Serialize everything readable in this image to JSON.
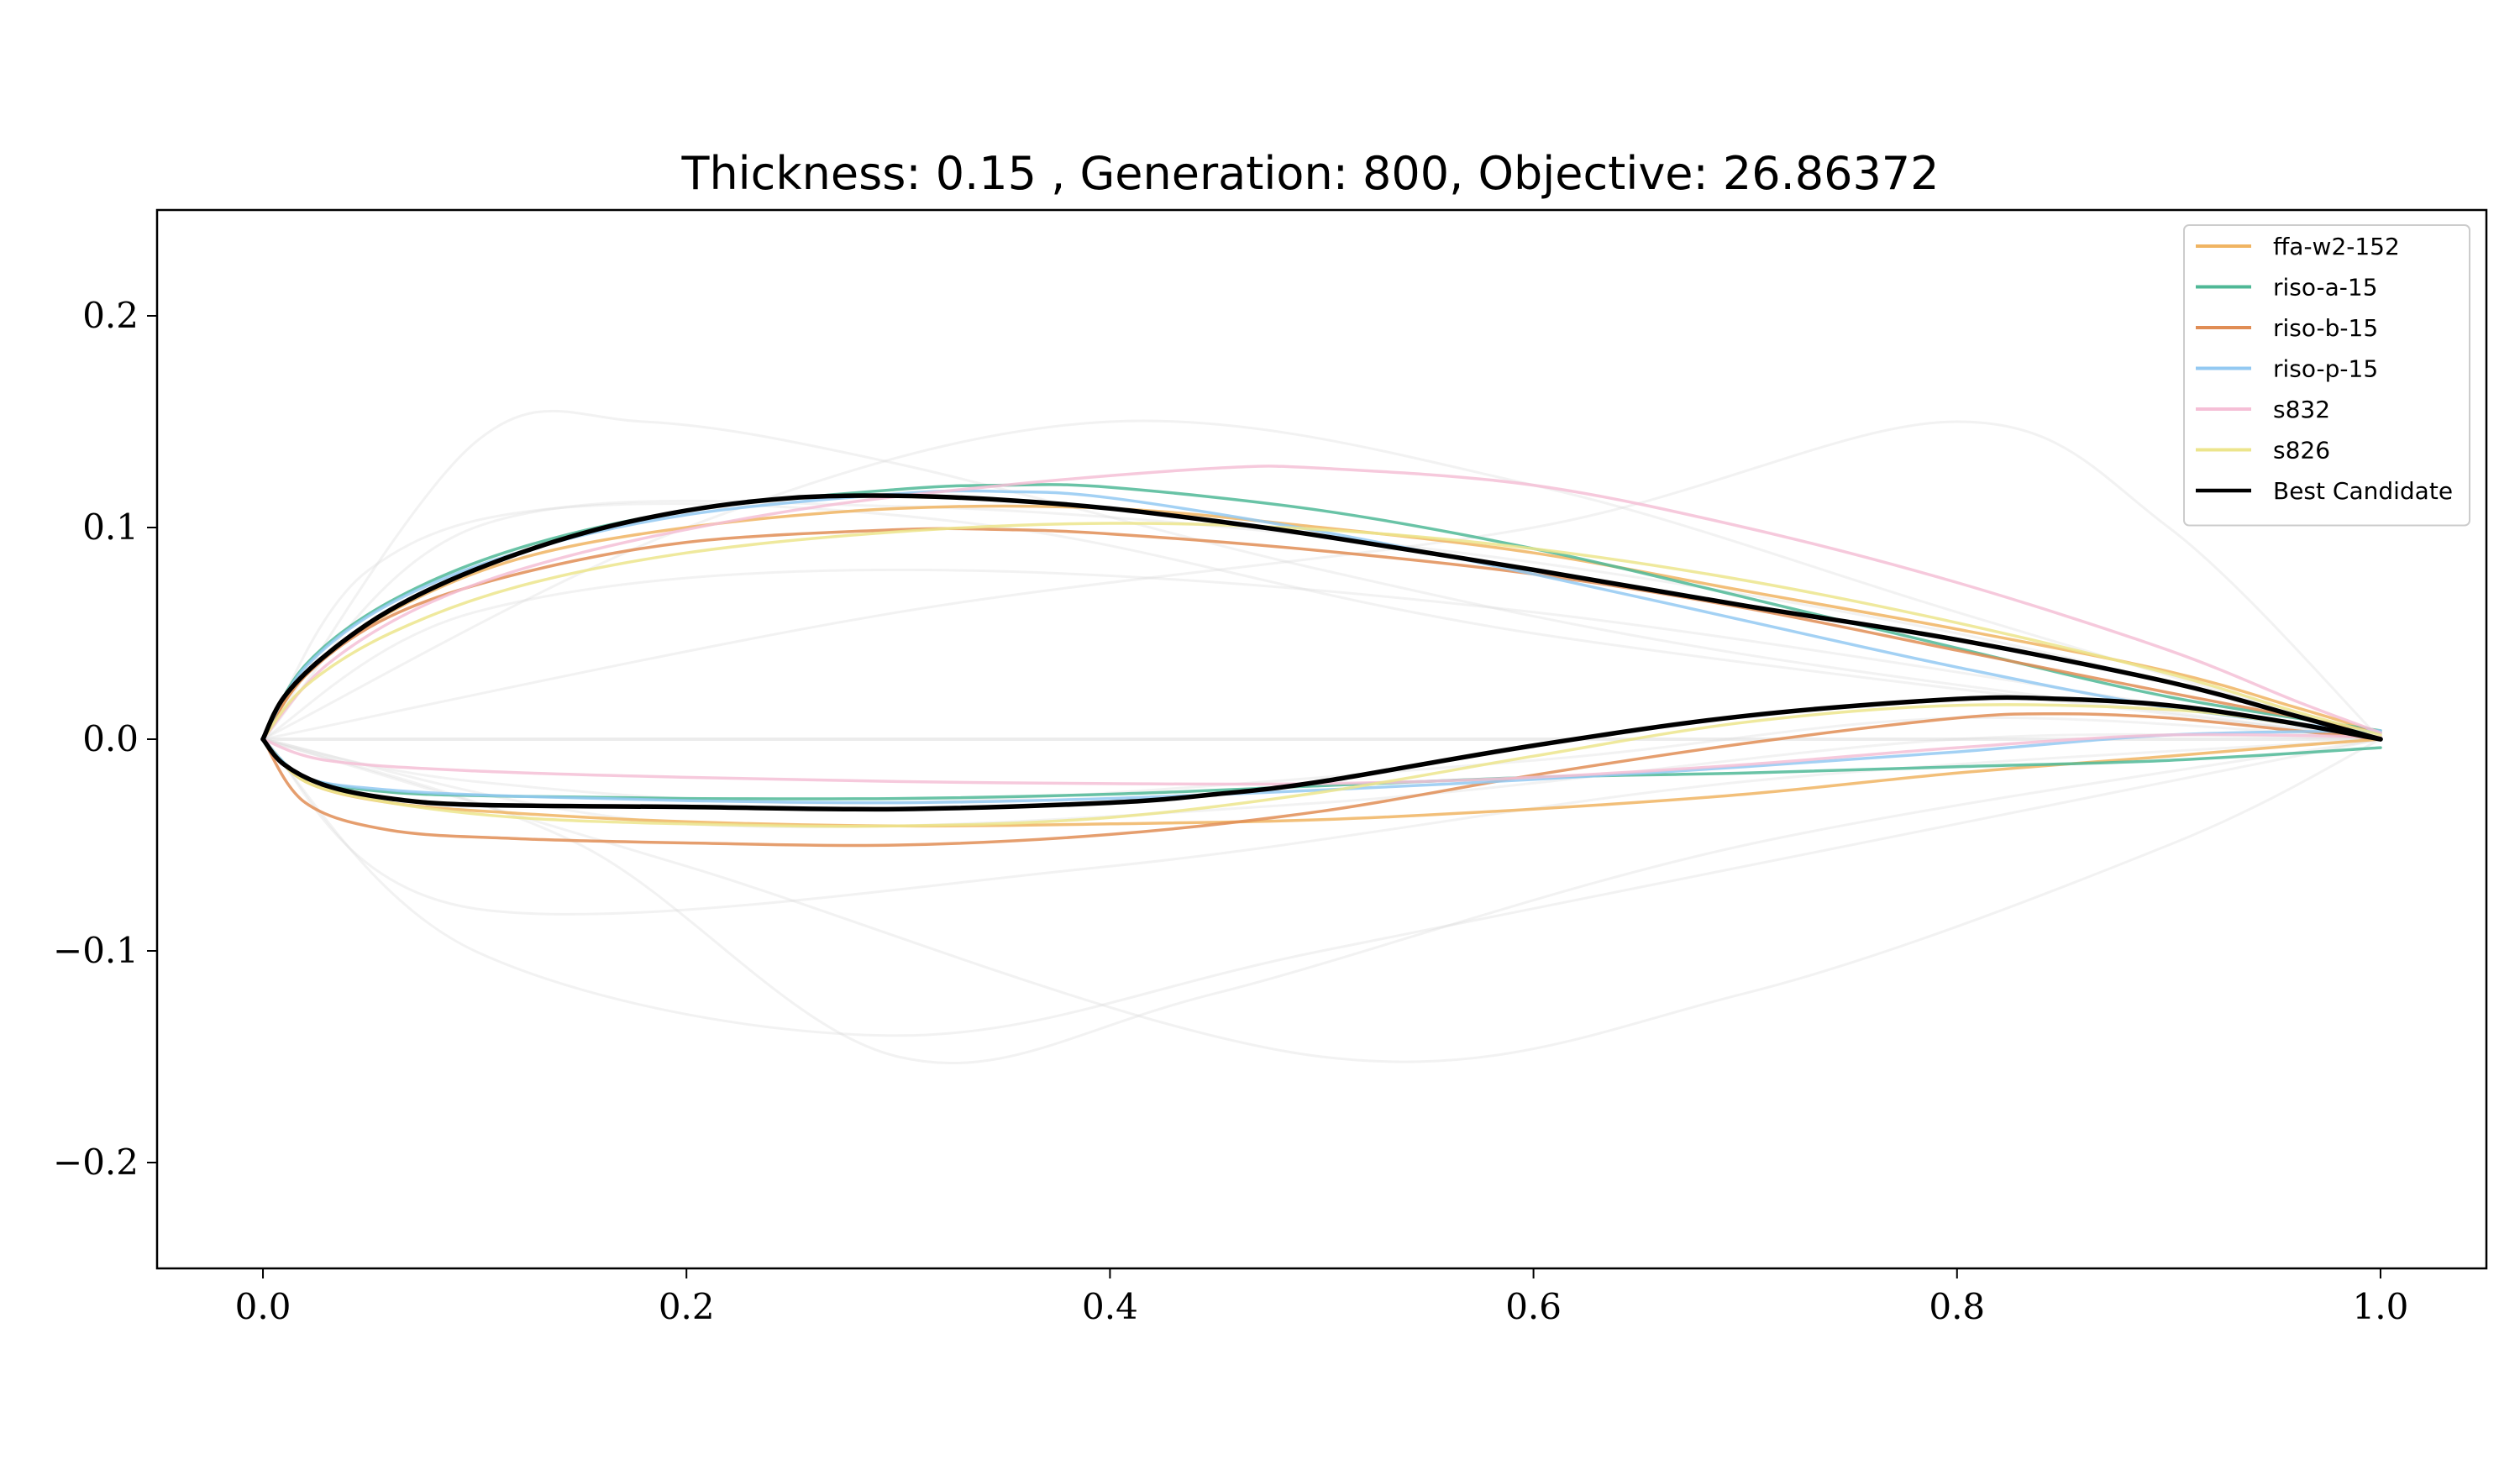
{
  "chart_data": {
    "type": "line",
    "title": "Thickness: 0.15 , Generation: 800, Objective: 26.86372",
    "xlabel": "",
    "ylabel": "",
    "xlim": [
      -0.05,
      1.05
    ],
    "ylim": [
      -0.25,
      0.25
    ],
    "x_ticks": [
      0.0,
      0.2,
      0.4,
      0.6,
      0.8,
      1.0
    ],
    "x_tick_labels": [
      "0.0",
      "0.2",
      "0.4",
      "0.6",
      "0.8",
      "1.0"
    ],
    "y_ticks": [
      0.2,
      0.1,
      0.0,
      -0.1,
      -0.2
    ],
    "y_tick_labels": [
      "0.2",
      "0.1",
      "0.0",
      "−0.1",
      "−0.2"
    ],
    "grid": false,
    "legend_position": "top-right",
    "background_population": {
      "color": "#d9d9d9",
      "curves": [
        {
          "upper": [
            [
              0,
              0
            ],
            [
              0.1,
              0.14
            ],
            [
              0.18,
              0.15
            ],
            [
              0.3,
              0.13
            ],
            [
              0.5,
              0.08
            ],
            [
              0.7,
              0.04
            ],
            [
              1,
              0
            ]
          ],
          "lower": [
            [
              0,
              0
            ],
            [
              0.1,
              -0.1
            ],
            [
              0.3,
              -0.14
            ],
            [
              0.5,
              -0.1
            ],
            [
              0.8,
              -0.04
            ],
            [
              1,
              0
            ]
          ]
        },
        {
          "upper": [
            [
              0,
              0
            ],
            [
              0.2,
              0.1
            ],
            [
              0.4,
              0.15
            ],
            [
              0.6,
              0.12
            ],
            [
              0.8,
              0.06
            ],
            [
              1,
              0
            ]
          ],
          "lower": [
            [
              0,
              0
            ],
            [
              0.15,
              -0.05
            ],
            [
              0.3,
              -0.15
            ],
            [
              0.45,
              -0.12
            ],
            [
              0.7,
              -0.05
            ],
            [
              1,
              0
            ]
          ]
        },
        {
          "upper": [
            [
              0,
              0
            ],
            [
              0.3,
              0.06
            ],
            [
              0.6,
              0.1
            ],
            [
              0.8,
              0.15
            ],
            [
              0.9,
              0.1
            ],
            [
              1,
              0
            ]
          ],
          "lower": [
            [
              0,
              0
            ],
            [
              0.2,
              -0.06
            ],
            [
              0.5,
              -0.15
            ],
            [
              0.7,
              -0.12
            ],
            [
              0.9,
              -0.05
            ],
            [
              1,
              0
            ]
          ]
        },
        {
          "upper": [
            [
              0,
              0
            ],
            [
              0.05,
              0.08
            ],
            [
              0.15,
              0.11
            ],
            [
              0.35,
              0.1
            ],
            [
              0.6,
              0.05
            ],
            [
              1,
              0
            ]
          ],
          "lower": [
            [
              0,
              0
            ],
            [
              0.1,
              -0.08
            ],
            [
              0.4,
              -0.06
            ],
            [
              0.7,
              -0.02
            ],
            [
              1,
              0
            ]
          ]
        },
        {
          "upper": [
            [
              0,
              0
            ],
            [
              0.1,
              0.1
            ],
            [
              0.3,
              0.11
            ],
            [
              0.55,
              0.09
            ],
            [
              0.8,
              0.05
            ],
            [
              1,
              0
            ]
          ],
          "lower": [
            [
              0,
              0
            ],
            [
              0.1,
              -0.02
            ],
            [
              0.3,
              -0.03
            ],
            [
              0.6,
              -0.01
            ],
            [
              0.8,
              0.01
            ],
            [
              1,
              0
            ]
          ]
        },
        {
          "upper": [
            [
              0,
              0
            ],
            [
              0.1,
              0.06
            ],
            [
              0.3,
              0.08
            ],
            [
              0.6,
              0.06
            ],
            [
              1,
              0
            ]
          ],
          "lower": [
            [
              0,
              0
            ],
            [
              0.2,
              -0.04
            ],
            [
              0.5,
              -0.03
            ],
            [
              0.8,
              0.0
            ],
            [
              1,
              0
            ]
          ]
        }
      ]
    },
    "series": [
      {
        "name": "ffa-w2-152",
        "color": "#f0b462",
        "upper": [
          [
            0,
            0
          ],
          [
            0.02,
            0.03
          ],
          [
            0.06,
            0.06
          ],
          [
            0.12,
            0.085
          ],
          [
            0.2,
            0.1
          ],
          [
            0.3,
            0.109
          ],
          [
            0.4,
            0.109
          ],
          [
            0.5,
            0.1
          ],
          [
            0.6,
            0.088
          ],
          [
            0.7,
            0.07
          ],
          [
            0.8,
            0.052
          ],
          [
            0.9,
            0.032
          ],
          [
            0.96,
            0.015
          ],
          [
            1,
            0.003
          ]
        ],
        "lower": [
          [
            0,
            0
          ],
          [
            0.02,
            -0.02
          ],
          [
            0.06,
            -0.03
          ],
          [
            0.12,
            -0.035
          ],
          [
            0.2,
            -0.039
          ],
          [
            0.3,
            -0.041
          ],
          [
            0.4,
            -0.04
          ],
          [
            0.5,
            -0.038
          ],
          [
            0.6,
            -0.033
          ],
          [
            0.7,
            -0.026
          ],
          [
            0.8,
            -0.016
          ],
          [
            0.9,
            -0.008
          ],
          [
            0.96,
            -0.003
          ],
          [
            1,
            0
          ]
        ]
      },
      {
        "name": "riso-a-15",
        "color": "#4fb896",
        "upper": [
          [
            0,
            0
          ],
          [
            0.02,
            0.035
          ],
          [
            0.06,
            0.065
          ],
          [
            0.12,
            0.09
          ],
          [
            0.2,
            0.108
          ],
          [
            0.3,
            0.118
          ],
          [
            0.35,
            0.12
          ],
          [
            0.4,
            0.119
          ],
          [
            0.5,
            0.108
          ],
          [
            0.6,
            0.09
          ],
          [
            0.7,
            0.067
          ],
          [
            0.8,
            0.043
          ],
          [
            0.9,
            0.02
          ],
          [
            1,
            0.004
          ]
        ],
        "lower": [
          [
            0,
            0
          ],
          [
            0.02,
            -0.018
          ],
          [
            0.06,
            -0.025
          ],
          [
            0.12,
            -0.027
          ],
          [
            0.2,
            -0.028
          ],
          [
            0.3,
            -0.028
          ],
          [
            0.4,
            -0.026
          ],
          [
            0.5,
            -0.022
          ],
          [
            0.6,
            -0.018
          ],
          [
            0.7,
            -0.016
          ],
          [
            0.8,
            -0.013
          ],
          [
            0.9,
            -0.01
          ],
          [
            1,
            -0.004
          ]
        ]
      },
      {
        "name": "riso-b-15",
        "color": "#e08d55",
        "upper": [
          [
            0,
            0
          ],
          [
            0.02,
            0.03
          ],
          [
            0.06,
            0.058
          ],
          [
            0.12,
            0.078
          ],
          [
            0.2,
            0.093
          ],
          [
            0.3,
            0.099
          ],
          [
            0.35,
            0.099
          ],
          [
            0.4,
            0.097
          ],
          [
            0.5,
            0.089
          ],
          [
            0.6,
            0.078
          ],
          [
            0.7,
            0.062
          ],
          [
            0.8,
            0.042
          ],
          [
            0.9,
            0.022
          ],
          [
            1,
            0.003
          ]
        ],
        "lower": [
          [
            0,
            0
          ],
          [
            0.02,
            -0.03
          ],
          [
            0.06,
            -0.043
          ],
          [
            0.12,
            -0.047
          ],
          [
            0.2,
            -0.049
          ],
          [
            0.3,
            -0.05
          ],
          [
            0.4,
            -0.045
          ],
          [
            0.5,
            -0.034
          ],
          [
            0.6,
            -0.017
          ],
          [
            0.7,
            -0.002
          ],
          [
            0.8,
            0.01
          ],
          [
            0.85,
            0.012
          ],
          [
            0.9,
            0.01
          ],
          [
            0.96,
            0.004
          ],
          [
            1,
            0
          ]
        ]
      },
      {
        "name": "riso-p-15",
        "color": "#93c9f2",
        "upper": [
          [
            0,
            0
          ],
          [
            0.02,
            0.034
          ],
          [
            0.06,
            0.064
          ],
          [
            0.12,
            0.088
          ],
          [
            0.2,
            0.106
          ],
          [
            0.3,
            0.116
          ],
          [
            0.35,
            0.117
          ],
          [
            0.4,
            0.114
          ],
          [
            0.5,
            0.098
          ],
          [
            0.6,
            0.078
          ],
          [
            0.7,
            0.056
          ],
          [
            0.8,
            0.034
          ],
          [
            0.9,
            0.015
          ],
          [
            1,
            0.003
          ]
        ],
        "lower": [
          [
            0,
            0
          ],
          [
            0.02,
            -0.018
          ],
          [
            0.06,
            -0.024
          ],
          [
            0.12,
            -0.027
          ],
          [
            0.2,
            -0.029
          ],
          [
            0.3,
            -0.03
          ],
          [
            0.4,
            -0.028
          ],
          [
            0.5,
            -0.024
          ],
          [
            0.6,
            -0.019
          ],
          [
            0.7,
            -0.013
          ],
          [
            0.8,
            -0.006
          ],
          [
            0.9,
            0.002
          ],
          [
            1,
            0.004
          ]
        ]
      },
      {
        "name": "s832",
        "color": "#f5bfd6",
        "upper": [
          [
            0,
            0
          ],
          [
            0.03,
            0.035
          ],
          [
            0.08,
            0.065
          ],
          [
            0.15,
            0.088
          ],
          [
            0.25,
            0.108
          ],
          [
            0.35,
            0.12
          ],
          [
            0.45,
            0.128
          ],
          [
            0.5,
            0.128
          ],
          [
            0.6,
            0.12
          ],
          [
            0.7,
            0.1
          ],
          [
            0.8,
            0.074
          ],
          [
            0.9,
            0.042
          ],
          [
            0.96,
            0.018
          ],
          [
            1,
            0.003
          ]
        ],
        "lower": [
          [
            0,
            0
          ],
          [
            0.03,
            -0.01
          ],
          [
            0.1,
            -0.015
          ],
          [
            0.2,
            -0.018
          ],
          [
            0.3,
            -0.02
          ],
          [
            0.4,
            -0.021
          ],
          [
            0.5,
            -0.021
          ],
          [
            0.6,
            -0.018
          ],
          [
            0.7,
            -0.012
          ],
          [
            0.8,
            -0.004
          ],
          [
            0.9,
            0.002
          ],
          [
            1,
            0.001
          ]
        ]
      },
      {
        "name": "s826",
        "color": "#ece58c",
        "upper": [
          [
            0,
            0
          ],
          [
            0.02,
            0.025
          ],
          [
            0.06,
            0.05
          ],
          [
            0.12,
            0.072
          ],
          [
            0.2,
            0.088
          ],
          [
            0.3,
            0.098
          ],
          [
            0.4,
            0.102
          ],
          [
            0.5,
            0.099
          ],
          [
            0.6,
            0.09
          ],
          [
            0.7,
            0.075
          ],
          [
            0.8,
            0.055
          ],
          [
            0.9,
            0.031
          ],
          [
            0.96,
            0.013
          ],
          [
            1,
            0.002
          ]
        ],
        "lower": [
          [
            0,
            0
          ],
          [
            0.02,
            -0.02
          ],
          [
            0.06,
            -0.03
          ],
          [
            0.12,
            -0.037
          ],
          [
            0.2,
            -0.04
          ],
          [
            0.3,
            -0.041
          ],
          [
            0.4,
            -0.037
          ],
          [
            0.5,
            -0.025
          ],
          [
            0.6,
            -0.008
          ],
          [
            0.7,
            0.008
          ],
          [
            0.8,
            0.016
          ],
          [
            0.9,
            0.014
          ],
          [
            0.96,
            0.007
          ],
          [
            1,
            0
          ]
        ]
      },
      {
        "name": "Best Candidate",
        "color": "#000000",
        "upper": [
          [
            0,
            0
          ],
          [
            0.01,
            0.02
          ],
          [
            0.03,
            0.04
          ],
          [
            0.06,
            0.061
          ],
          [
            0.1,
            0.08
          ],
          [
            0.15,
            0.097
          ],
          [
            0.2,
            0.108
          ],
          [
            0.25,
            0.114
          ],
          [
            0.3,
            0.115
          ],
          [
            0.35,
            0.113
          ],
          [
            0.4,
            0.109
          ],
          [
            0.45,
            0.103
          ],
          [
            0.5,
            0.096
          ],
          [
            0.6,
            0.08
          ],
          [
            0.7,
            0.063
          ],
          [
            0.8,
            0.047
          ],
          [
            0.9,
            0.027
          ],
          [
            0.96,
            0.011
          ],
          [
            1,
            0
          ]
        ],
        "lower": [
          [
            0,
            0
          ],
          [
            0.01,
            -0.012
          ],
          [
            0.03,
            -0.022
          ],
          [
            0.06,
            -0.028
          ],
          [
            0.1,
            -0.031
          ],
          [
            0.2,
            -0.032
          ],
          [
            0.3,
            -0.033
          ],
          [
            0.4,
            -0.03
          ],
          [
            0.45,
            -0.026
          ],
          [
            0.5,
            -0.02
          ],
          [
            0.6,
            -0.003
          ],
          [
            0.7,
            0.011
          ],
          [
            0.8,
            0.019
          ],
          [
            0.85,
            0.019
          ],
          [
            0.9,
            0.016
          ],
          [
            0.95,
            0.009
          ],
          [
            1,
            0
          ]
        ]
      }
    ]
  }
}
